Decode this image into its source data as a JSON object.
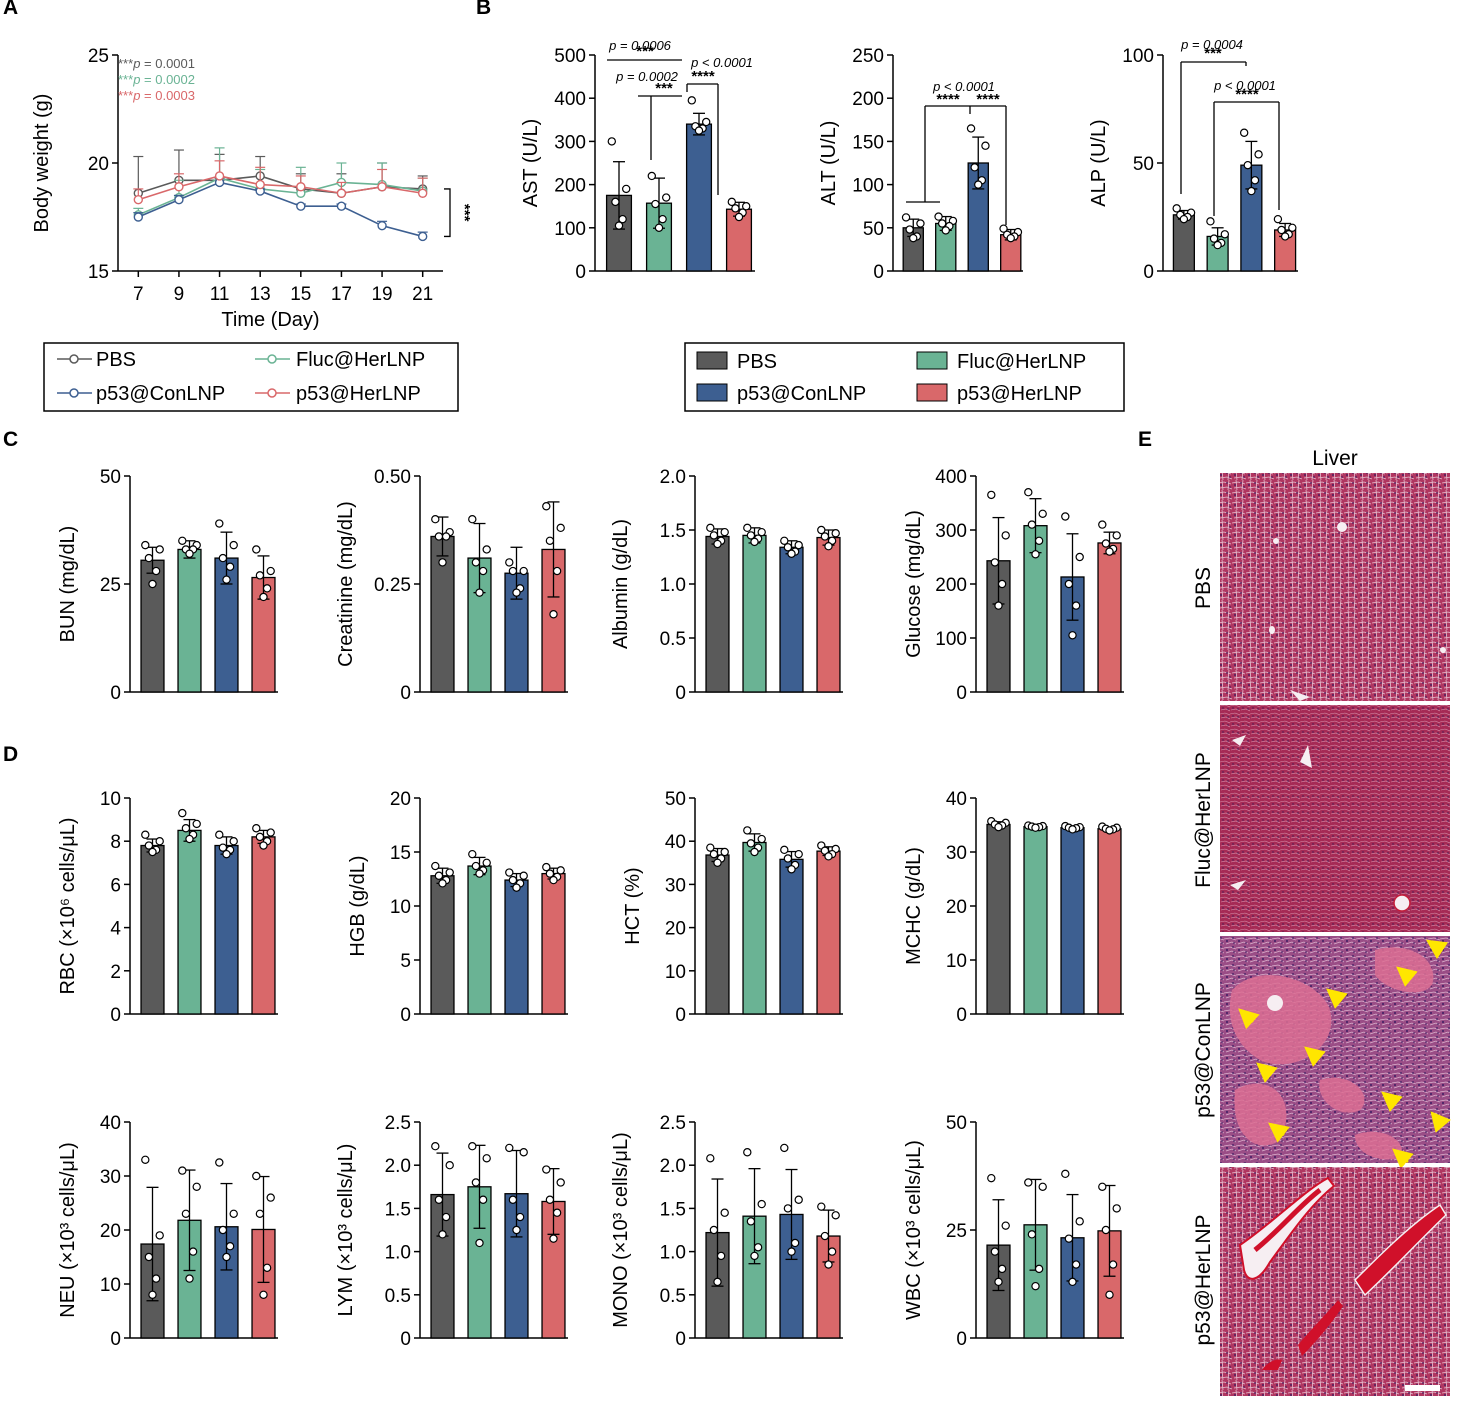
{
  "colors": {
    "PBS": "#5a5a5a",
    "Fluc@HerLNP": "#6ab394",
    "p53@ConLNP": "#3d5f91",
    "p53@HerLNP": "#d9686a"
  },
  "panels": {
    "A": "A",
    "B": "B",
    "C": "C",
    "D": "D",
    "E": "E"
  },
  "legend_A": [
    "PBS",
    "Fluc@HerLNP",
    "p53@ConLNP",
    "p53@HerLNP"
  ],
  "legend_B": [
    "PBS",
    "Fluc@HerLNP",
    "p53@ConLNP",
    "p53@HerLNP"
  ],
  "histology": {
    "column_title": "Liver",
    "rows": [
      "PBS",
      "Fluc@HerLNP",
      "p53@ConLNP",
      "p53@HerLNP"
    ]
  },
  "chart_data": [
    {
      "id": "A",
      "type": "line",
      "xlabel": "Time (Day)",
      "ylabel": "Body weight (g)",
      "x": [
        7,
        9,
        11,
        13,
        15,
        17,
        19,
        21
      ],
      "xlim": [
        6,
        22
      ],
      "ylim": [
        15,
        25
      ],
      "yticks": [
        15,
        20,
        25
      ],
      "series": [
        {
          "name": "PBS",
          "values": [
            18.6,
            19.2,
            19.2,
            19.4,
            18.8,
            18.6,
            18.9,
            18.8
          ],
          "err": [
            1.7,
            1.4,
            1.2,
            0.9,
            0.7,
            0.9,
            1.1,
            0.6
          ]
        },
        {
          "name": "Fluc@HerLNP",
          "values": [
            17.6,
            18.4,
            19.3,
            18.8,
            18.6,
            19.1,
            19.0,
            18.7
          ],
          "err": [
            0.3,
            0.8,
            1.4,
            0.9,
            1.2,
            0.9,
            1.0,
            0.6
          ]
        },
        {
          "name": "p53@ConLNP",
          "values": [
            17.5,
            18.3,
            19.1,
            18.7,
            18.0,
            18.0,
            17.1,
            16.6
          ],
          "err": [
            0.2,
            0.2,
            0.2,
            0.1,
            0.1,
            0.1,
            0.2,
            0.2
          ]
        },
        {
          "name": "p53@HerLNP",
          "values": [
            18.3,
            18.9,
            19.4,
            19.0,
            18.9,
            18.6,
            18.9,
            18.6
          ],
          "err": [
            0.5,
            0.6,
            0.7,
            0.8,
            0.5,
            0.5,
            0.8,
            0.7
          ]
        }
      ],
      "annotations": [
        {
          "stars": "***",
          "text": "p = 0.0001",
          "series": "PBS"
        },
        {
          "stars": "***",
          "text": "p = 0.0002",
          "series": "Fluc@HerLNP"
        },
        {
          "stars": "***",
          "text": "p = 0.0003",
          "series": "p53@HerLNP"
        },
        {
          "stars": "***",
          "text": ""
        }
      ]
    },
    {
      "id": "AST",
      "type": "bar",
      "ylabel": "AST (U/L)",
      "ylim": [
        0,
        500
      ],
      "yticks": [
        0,
        100,
        200,
        300,
        400,
        500
      ],
      "categories": [
        "PBS",
        "Fluc@HerLNP",
        "p53@ConLNP",
        "p53@HerLNP"
      ],
      "values": [
        175,
        157,
        340,
        143
      ],
      "err": [
        78,
        58,
        25,
        16
      ],
      "points": [
        [
          300,
          190,
          160,
          120,
          105
        ],
        [
          220,
          170,
          155,
          120,
          100
        ],
        [
          395,
          345,
          335,
          330,
          325
        ],
        [
          160,
          150,
          145,
          135,
          125
        ]
      ],
      "annotations": [
        {
          "text": "p = 0.0006",
          "stars": "***"
        },
        {
          "text": "p = 0.0002",
          "stars": "***"
        },
        {
          "text": "p < 0.0001",
          "stars": "****"
        }
      ]
    },
    {
      "id": "ALT",
      "type": "bar",
      "ylabel": "ALT (U/L)",
      "ylim": [
        0,
        250
      ],
      "yticks": [
        0,
        50,
        100,
        150,
        200,
        250
      ],
      "categories": [
        "PBS",
        "Fluc@HerLNP",
        "p53@ConLNP",
        "p53@HerLNP"
      ],
      "values": [
        50,
        55,
        125,
        42
      ],
      "err": [
        10,
        8,
        30,
        6
      ],
      "points": [
        [
          62,
          55,
          48,
          40,
          38
        ],
        [
          63,
          58,
          55,
          52,
          47
        ],
        [
          165,
          145,
          120,
          105,
          100
        ],
        [
          49,
          45,
          42,
          40,
          38
        ]
      ],
      "annotations": [
        {
          "text": "p < 0.0001",
          "stars": "****"
        },
        {
          "text": "",
          "stars": "****"
        }
      ]
    },
    {
      "id": "ALP",
      "type": "bar",
      "ylabel": "ALP (U/L)",
      "ylim": [
        0,
        100
      ],
      "yticks": [
        0,
        50,
        100
      ],
      "categories": [
        "PBS",
        "Fluc@HerLNP",
        "p53@ConLNP",
        "p53@HerLNP"
      ],
      "values": [
        26,
        16,
        49,
        19
      ],
      "err": [
        2,
        4,
        11,
        3
      ],
      "points": [
        [
          29,
          27,
          26,
          25,
          24
        ],
        [
          23,
          17,
          15,
          13,
          12
        ],
        [
          64,
          54,
          49,
          42,
          37
        ],
        [
          24,
          20,
          19,
          17,
          16
        ]
      ],
      "annotations": [
        {
          "text": "p = 0.0004",
          "stars": "***"
        },
        {
          "text": "p < 0.0001",
          "stars": "****"
        }
      ]
    },
    {
      "id": "BUN",
      "type": "bar",
      "ylabel": "BUN (mg/dL)",
      "ylim": [
        0,
        50
      ],
      "yticks": [
        0,
        25,
        50
      ],
      "categories": [
        "PBS",
        "Fluc@HerLNP",
        "p53@ConLNP",
        "p53@HerLNP"
      ],
      "values": [
        30.5,
        33,
        31,
        26.5
      ],
      "err": [
        3,
        2,
        6,
        5
      ],
      "points": [
        [
          34,
          33,
          31,
          28,
          25
        ],
        [
          35,
          34,
          33,
          33,
          32
        ],
        [
          39,
          34,
          31,
          29,
          26
        ],
        [
          33,
          28,
          27,
          24,
          22
        ]
      ]
    },
    {
      "id": "Creatinine",
      "type": "bar",
      "ylabel": "Creatinine (mg/dL)",
      "ylim": [
        0,
        0.5
      ],
      "yticks": [
        0,
        0.25,
        0.5
      ],
      "ytick_labels": [
        "0",
        "0.25",
        "0.50"
      ],
      "categories": [
        "PBS",
        "Fluc@HerLNP",
        "p53@ConLNP",
        "p53@HerLNP"
      ],
      "values": [
        0.36,
        0.31,
        0.275,
        0.33
      ],
      "err": [
        0.045,
        0.08,
        0.06,
        0.11
      ],
      "points": [
        [
          0.4,
          0.37,
          0.36,
          0.36,
          0.3
        ],
        [
          0.4,
          0.33,
          0.3,
          0.28,
          0.23
        ],
        [
          0.3,
          0.28,
          0.28,
          0.24,
          0.23
        ],
        [
          0.43,
          0.38,
          0.35,
          0.28,
          0.18
        ]
      ]
    },
    {
      "id": "Albumin",
      "type": "bar",
      "ylabel": "Albumin (g/dL)",
      "ylim": [
        0,
        2.0
      ],
      "yticks": [
        0,
        0.5,
        1.0,
        1.5,
        2.0
      ],
      "ytick_labels": [
        "0",
        "0.5",
        "1.0",
        "1.5",
        "2.0"
      ],
      "categories": [
        "PBS",
        "Fluc@HerLNP",
        "p53@ConLNP",
        "p53@HerLNP"
      ],
      "values": [
        1.44,
        1.45,
        1.34,
        1.43
      ],
      "err": [
        0.07,
        0.07,
        0.06,
        0.07
      ],
      "points": [
        [
          1.52,
          1.48,
          1.45,
          1.4,
          1.37
        ],
        [
          1.52,
          1.48,
          1.45,
          1.42,
          1.39
        ],
        [
          1.4,
          1.36,
          1.34,
          1.3,
          1.28
        ],
        [
          1.5,
          1.47,
          1.44,
          1.4,
          1.35
        ]
      ]
    },
    {
      "id": "Glucose",
      "type": "bar",
      "ylabel": "Glucose (mg/dL)",
      "ylim": [
        0,
        400
      ],
      "yticks": [
        0,
        100,
        200,
        300,
        400
      ],
      "categories": [
        "PBS",
        "Fluc@HerLNP",
        "p53@ConLNP",
        "p53@HerLNP"
      ],
      "values": [
        243,
        308,
        213,
        276
      ],
      "err": [
        80,
        50,
        80,
        20
      ],
      "points": [
        [
          365,
          290,
          240,
          200,
          160
        ],
        [
          370,
          330,
          310,
          280,
          255
        ],
        [
          325,
          250,
          200,
          160,
          105
        ],
        [
          310,
          290,
          275,
          265,
          260
        ]
      ]
    },
    {
      "id": "RBC",
      "type": "bar",
      "ylabel": "RBC (×10⁶ cells/μL)",
      "ylim": [
        0,
        10
      ],
      "yticks": [
        0,
        2,
        4,
        6,
        8,
        10
      ],
      "categories": [
        "PBS",
        "Fluc@HerLNP",
        "p53@ConLNP",
        "p53@HerLNP"
      ],
      "values": [
        7.8,
        8.5,
        7.8,
        8.2
      ],
      "err": [
        0.3,
        0.5,
        0.4,
        0.3
      ],
      "points": [
        [
          8.3,
          8.0,
          7.8,
          7.6,
          7.5
        ],
        [
          9.3,
          8.8,
          8.6,
          8.3,
          8.1
        ],
        [
          8.3,
          8.0,
          7.7,
          7.6,
          7.4
        ],
        [
          8.6,
          8.4,
          8.2,
          8.0,
          7.8
        ]
      ]
    },
    {
      "id": "HGB",
      "type": "bar",
      "ylabel": "HGB (g/dL)",
      "ylim": [
        0,
        20
      ],
      "yticks": [
        0,
        5,
        10,
        15,
        20
      ],
      "categories": [
        "PBS",
        "Fluc@HerLNP",
        "p53@ConLNP",
        "p53@HerLNP"
      ],
      "values": [
        12.8,
        13.7,
        12.4,
        13.0
      ],
      "err": [
        0.7,
        0.8,
        0.6,
        0.5
      ],
      "points": [
        [
          13.7,
          13.1,
          12.8,
          12.4,
          12.1
        ],
        [
          14.8,
          14.0,
          13.7,
          13.3,
          13.0
        ],
        [
          13.1,
          12.8,
          12.4,
          12.1,
          11.7
        ],
        [
          13.6,
          13.3,
          13.0,
          12.7,
          12.4
        ]
      ]
    },
    {
      "id": "HCT",
      "type": "bar",
      "ylabel": "HCT (%)",
      "ylim": [
        0,
        50
      ],
      "yticks": [
        0,
        10,
        20,
        30,
        40,
        50
      ],
      "categories": [
        "PBS",
        "Fluc@HerLNP",
        "p53@ConLNP",
        "p53@HerLNP"
      ],
      "values": [
        36.8,
        39.7,
        35.8,
        37.7
      ],
      "err": [
        1.5,
        2,
        1.8,
        1
      ],
      "points": [
        [
          38.5,
          37.5,
          37,
          36,
          35
        ],
        [
          42.5,
          40.5,
          39.5,
          38.5,
          37.5
        ],
        [
          38,
          37,
          36,
          34.5,
          33.5
        ],
        [
          39,
          38.2,
          37.8,
          37,
          36.5
        ]
      ]
    },
    {
      "id": "MCHC",
      "type": "bar",
      "ylabel": "MCHC (g/dL)",
      "ylim": [
        0,
        40
      ],
      "yticks": [
        0,
        10,
        20,
        30,
        40
      ],
      "categories": [
        "PBS",
        "Fluc@HerLNP",
        "p53@ConLNP",
        "p53@HerLNP"
      ],
      "values": [
        35.1,
        34.7,
        34.5,
        34.3
      ],
      "err": [
        0.5,
        0.3,
        0.3,
        0.3
      ],
      "points": [
        [
          35.7,
          35.4,
          35.1,
          34.9,
          34.6
        ],
        [
          34.9,
          34.8,
          34.7,
          34.6,
          34.5
        ],
        [
          34.8,
          34.6,
          34.5,
          34.4,
          34.2
        ],
        [
          34.7,
          34.5,
          34.3,
          34.2,
          34.0
        ]
      ]
    },
    {
      "id": "NEU",
      "type": "bar",
      "ylabel": "NEU (×10³ cells/μL)",
      "ylim": [
        0,
        40
      ],
      "yticks": [
        0,
        10,
        20,
        30,
        40
      ],
      "categories": [
        "PBS",
        "Fluc@HerLNP",
        "p53@ConLNP",
        "p53@HerLNP"
      ],
      "values": [
        17.4,
        21.8,
        20.6,
        20.1
      ],
      "err": [
        10.5,
        9.3,
        8,
        9.8
      ],
      "points": [
        [
          33,
          19,
          15,
          11,
          8
        ],
        [
          31,
          28,
          23,
          16,
          11
        ],
        [
          32.5,
          23,
          20,
          17,
          15
        ],
        [
          30,
          26,
          23,
          13,
          8
        ]
      ]
    },
    {
      "id": "LYM",
      "type": "bar",
      "ylabel": "LYM (×10³ cells/μL)",
      "ylim": [
        0,
        2.5
      ],
      "yticks": [
        0,
        0.5,
        1.0,
        1.5,
        2.0,
        2.5
      ],
      "ytick_labels": [
        "0",
        "0.5",
        "1.0",
        "1.5",
        "2.0",
        "2.5"
      ],
      "categories": [
        "PBS",
        "Fluc@HerLNP",
        "p53@ConLNP",
        "p53@HerLNP"
      ],
      "values": [
        1.66,
        1.75,
        1.67,
        1.58
      ],
      "err": [
        0.48,
        0.48,
        0.5,
        0.38
      ],
      "points": [
        [
          2.22,
          2.0,
          1.6,
          1.4,
          1.2
        ],
        [
          2.22,
          2.08,
          1.8,
          1.6,
          1.1
        ],
        [
          2.2,
          2.15,
          1.6,
          1.4,
          1.25
        ],
        [
          1.95,
          1.8,
          1.6,
          1.45,
          1.15
        ]
      ]
    },
    {
      "id": "MONO",
      "type": "bar",
      "ylabel": "MONO (×10³ cells/μL)",
      "ylim": [
        0,
        2.5
      ],
      "yticks": [
        0,
        0.5,
        1.0,
        1.5,
        2.0,
        2.5
      ],
      "ytick_labels": [
        "0",
        "0.5",
        "1.0",
        "1.5",
        "2.0",
        "2.5"
      ],
      "categories": [
        "PBS",
        "Fluc@HerLNP",
        "p53@ConLNP",
        "p53@HerLNP"
      ],
      "values": [
        1.22,
        1.41,
        1.43,
        1.18
      ],
      "err": [
        0.62,
        0.55,
        0.52,
        0.3
      ],
      "points": [
        [
          2.08,
          1.45,
          1.25,
          0.95,
          0.65
        ],
        [
          2.15,
          1.55,
          1.35,
          1.05,
          0.95
        ],
        [
          2.2,
          1.6,
          1.5,
          1.1,
          1.0
        ],
        [
          1.52,
          1.42,
          1.18,
          1.0,
          0.85
        ]
      ]
    },
    {
      "id": "WBC",
      "type": "bar",
      "ylabel": "WBC (×10³ cells/μL)",
      "ylim": [
        0,
        50
      ],
      "yticks": [
        0,
        25,
        50
      ],
      "categories": [
        "PBS",
        "Fluc@HerLNP",
        "p53@ConLNP",
        "p53@HerLNP"
      ],
      "values": [
        21.5,
        26.2,
        23.2,
        24.8
      ],
      "err": [
        10.5,
        10.5,
        10,
        10.5
      ],
      "points": [
        [
          37,
          26,
          20,
          16,
          13
        ],
        [
          36,
          35,
          24,
          16,
          12
        ],
        [
          38,
          27,
          23,
          17,
          13
        ],
        [
          35,
          30,
          25,
          17,
          10
        ]
      ]
    }
  ]
}
